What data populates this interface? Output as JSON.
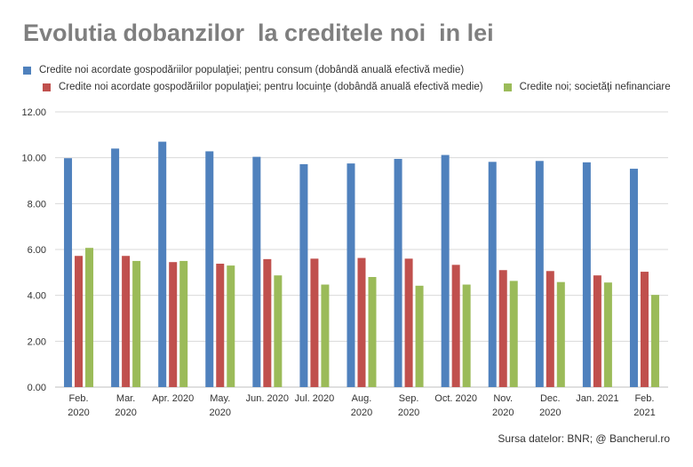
{
  "title": "Evolutia dobanzilor  la creditele noi  in lei",
  "source": "Sursa datelor: BNR; @ Bancherul.ro",
  "colors": {
    "series_1": "#4f81bd",
    "series_2": "#c0504d",
    "series_3": "#9bbb59",
    "grid": "#d9d9d9",
    "title": "#7f7f7f"
  },
  "chart_data": {
    "type": "bar",
    "title": "Evolutia dobanzilor  la creditele noi  in lei",
    "categories": [
      [
        "Feb.",
        "2020"
      ],
      [
        "Mar.",
        "2020"
      ],
      [
        "Apr. 2020"
      ],
      [
        "May.",
        "2020"
      ],
      [
        "Jun. 2020"
      ],
      [
        "Jul. 2020"
      ],
      [
        "Aug.",
        "2020"
      ],
      [
        "Sep.",
        "2020"
      ],
      [
        "Oct. 2020"
      ],
      [
        "Nov.",
        "2020"
      ],
      [
        "Dec.",
        "2020"
      ],
      [
        "Jan. 2021"
      ],
      [
        "Feb.",
        "2021"
      ]
    ],
    "series": [
      {
        "name": "Credite noi acordate gospodăriilor populaţiei; pentru consum (dobândă anuală efectivă medie)",
        "values": [
          9.98,
          10.4,
          10.7,
          10.28,
          10.04,
          9.72,
          9.75,
          9.95,
          10.12,
          9.82,
          9.86,
          9.8,
          9.52
        ]
      },
      {
        "name": "Credite noi acordate gospodăriilor populaţiei; pentru locuinţe (dobândă anuală efectivă medie)",
        "values": [
          5.72,
          5.72,
          5.45,
          5.38,
          5.58,
          5.6,
          5.63,
          5.6,
          5.33,
          5.1,
          5.06,
          4.87,
          5.03
        ]
      },
      {
        "name": "Credite noi; societăţi nefinanciare",
        "values": [
          6.07,
          5.5,
          5.5,
          5.3,
          4.87,
          4.47,
          4.8,
          4.42,
          4.47,
          4.63,
          4.58,
          4.56,
          4.02
        ]
      }
    ],
    "yticks": [
      "0.00",
      "2.00",
      "4.00",
      "6.00",
      "8.00",
      "10.00",
      "12.00"
    ],
    "ylim": [
      0,
      12
    ],
    "grid": true,
    "legend_position": "top"
  }
}
